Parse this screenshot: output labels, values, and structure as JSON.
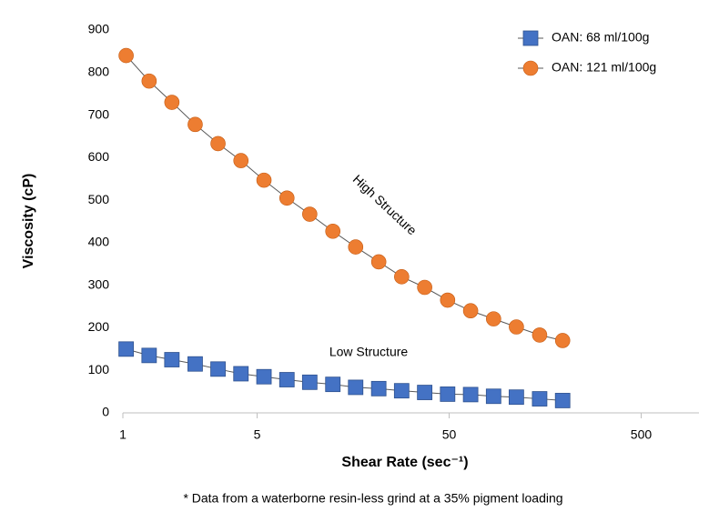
{
  "chart_data": {
    "type": "scatter",
    "x_label": "Shear Rate (sec⁻¹)",
    "y_label": "Viscosity (cP)",
    "footnote": "* Data from a waterborne resin-less grind at a 35% pigment loading",
    "annotations": [
      "High Structure",
      "Low Structure"
    ],
    "x": [
      1.04,
      1.37,
      1.8,
      2.38,
      3.13,
      4.12,
      5.43,
      7.15,
      9.4,
      12.4,
      16.3,
      21.5,
      28.3,
      37.3,
      49.1,
      64.7,
      85.2,
      112,
      148,
      195
    ],
    "series": [
      {
        "name": "OAN: 68 ml/100g",
        "color": "#4472c4",
        "marker": "square",
        "values": [
          150,
          135,
          125,
          115,
          103,
          92,
          85,
          78,
          72,
          67,
          60,
          57,
          52,
          48,
          44,
          43,
          39,
          37,
          33,
          29
        ]
      },
      {
        "name": "OAN: 121 ml/100g",
        "color": "#ed7d31",
        "marker": "circle",
        "values": [
          840,
          780,
          730,
          678,
          633,
          593,
          547,
          505,
          467,
          427,
          390,
          355,
          320,
          295,
          265,
          240,
          221,
          202,
          183,
          170
        ]
      }
    ],
    "xscale": "log",
    "xlim": [
      1,
      1000
    ],
    "xticks": [
      1,
      5,
      50,
      500
    ],
    "ylim": [
      0,
      900
    ],
    "yticks": [
      0,
      100,
      200,
      300,
      400,
      500,
      600,
      700,
      800,
      900
    ],
    "grid": false,
    "legend": "top-right"
  }
}
